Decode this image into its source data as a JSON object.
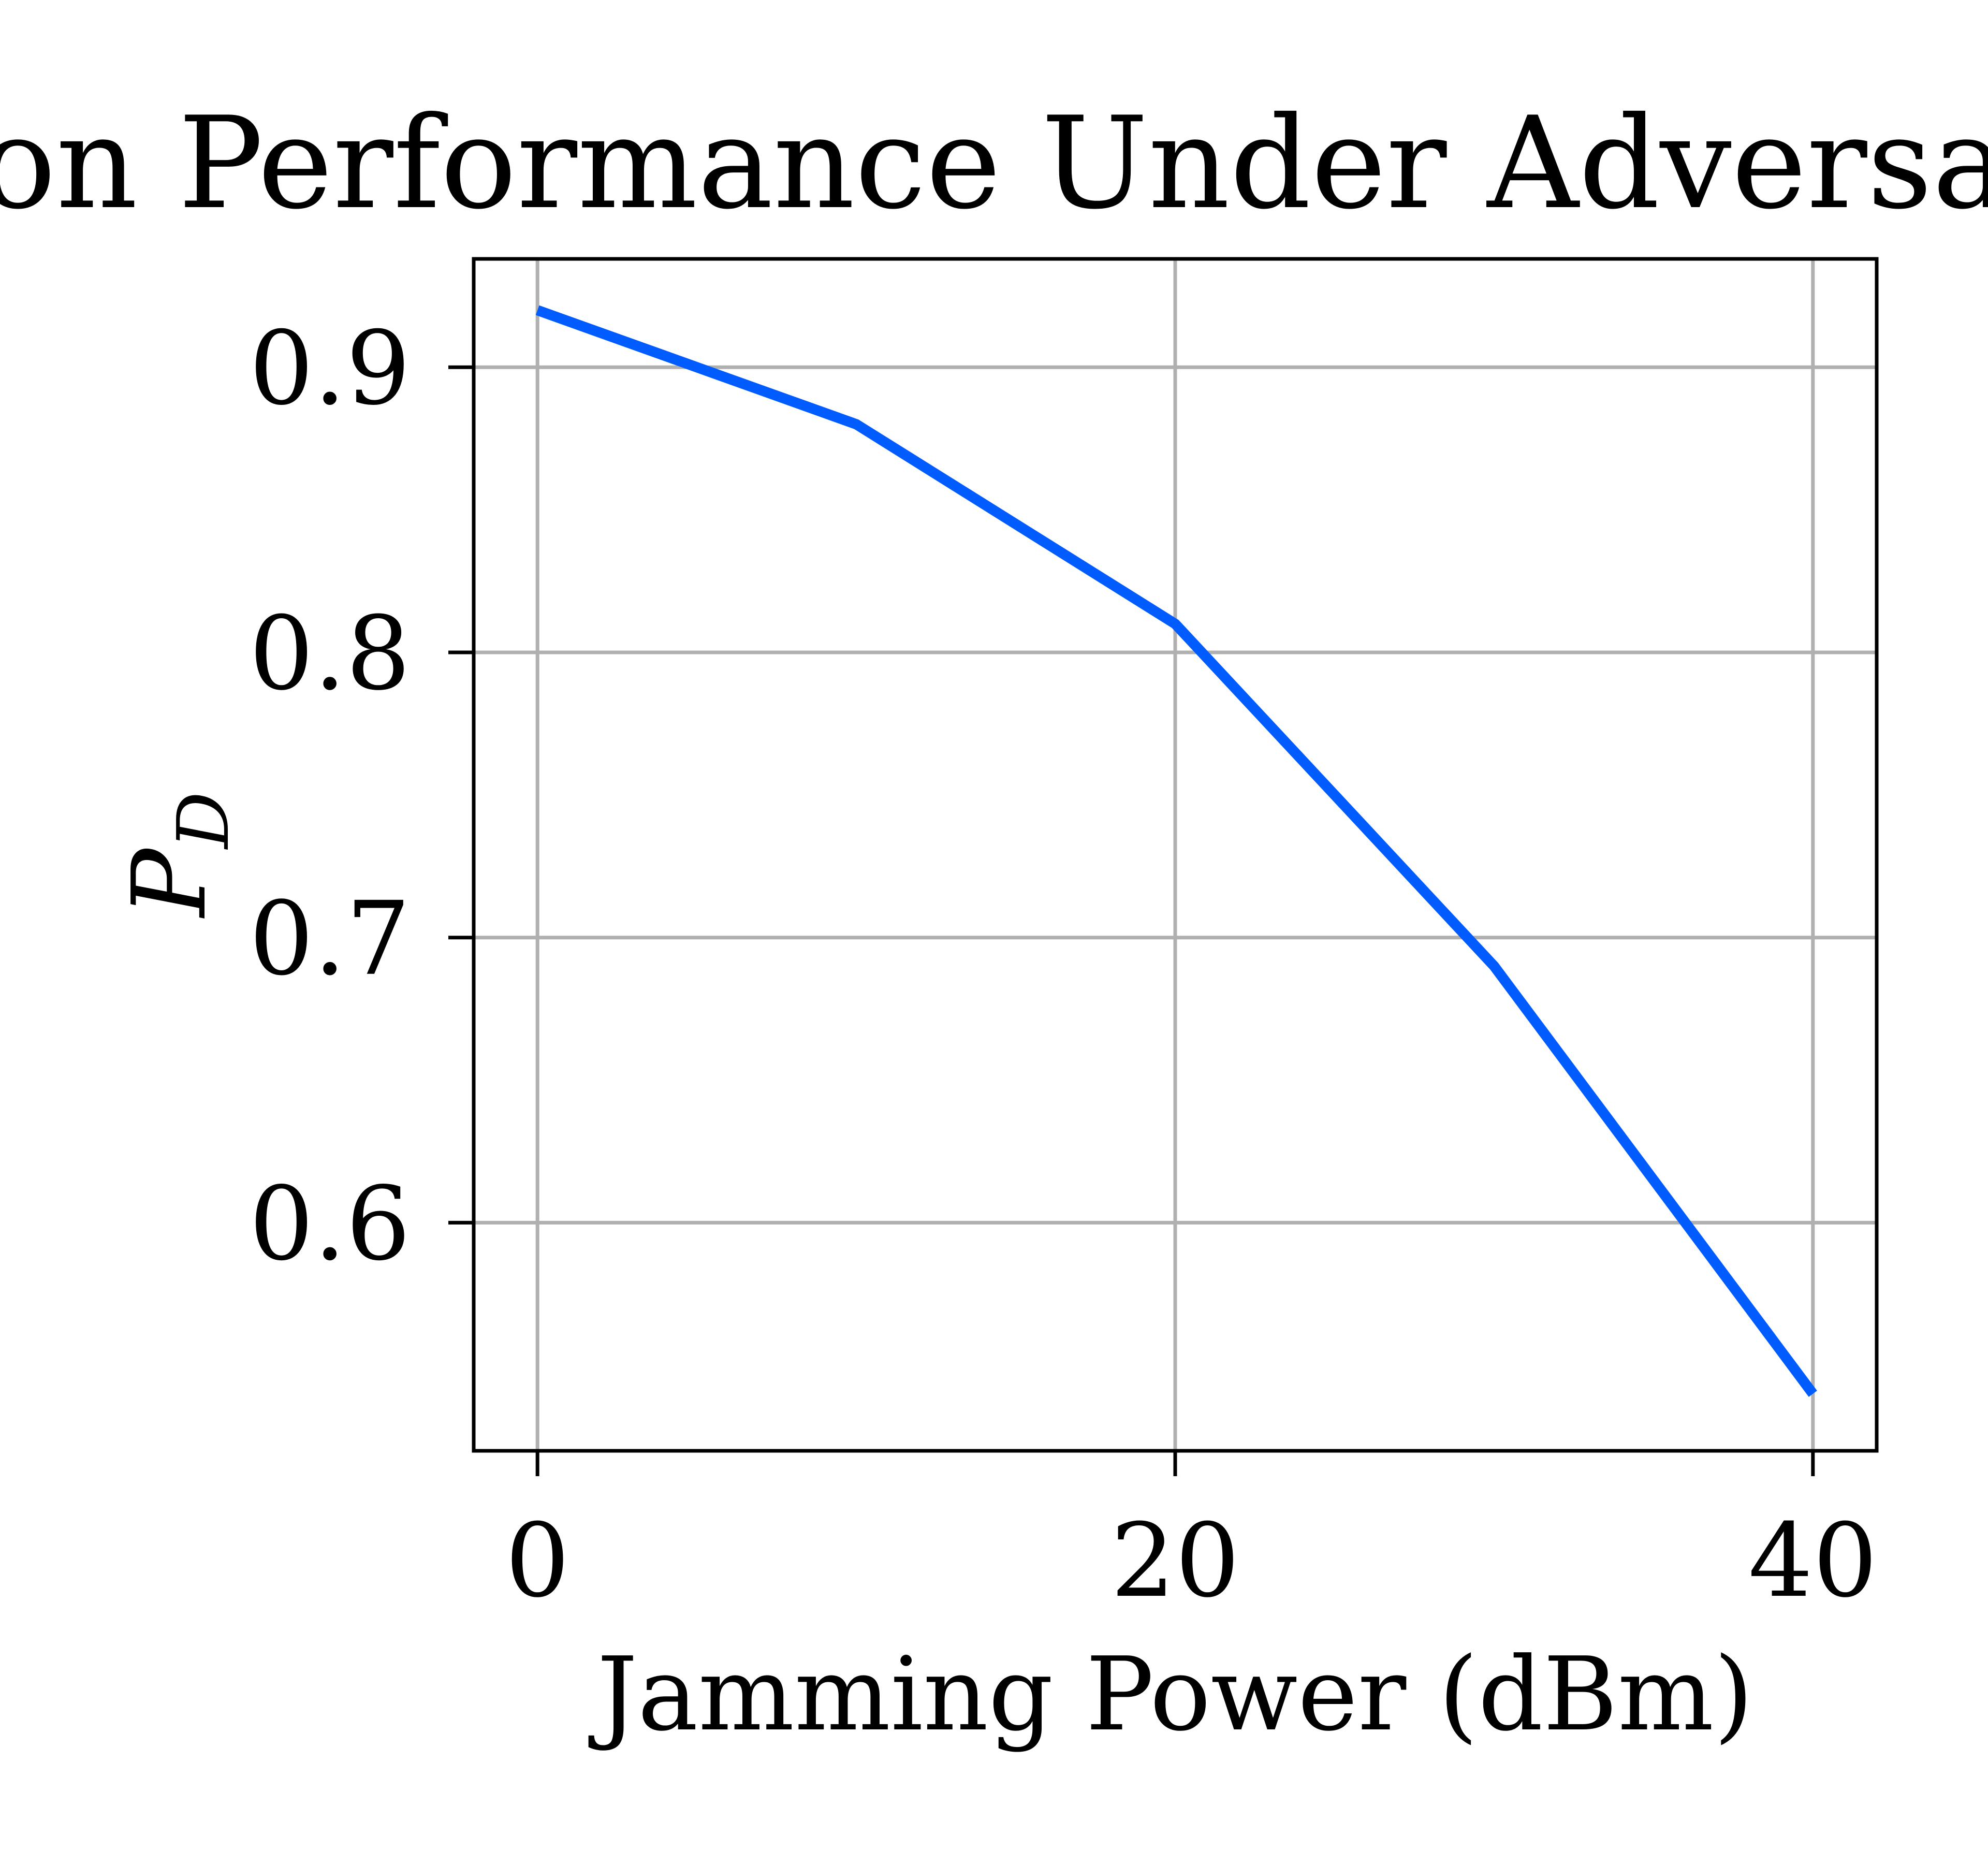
{
  "chart_data": {
    "type": "line",
    "title": "Detection Performance Under Adversarial Jamming",
    "xlabel": "Jamming Power (dBm)",
    "ylabel": {
      "main": "P",
      "subscript": "D"
    },
    "xlim": [
      -2,
      42
    ],
    "ylim": [
      0.52,
      0.938
    ],
    "xticks": [
      0,
      20,
      40
    ],
    "xtick_labels": [
      "0",
      "20",
      "40"
    ],
    "yticks": [
      0.6,
      0.7,
      0.8,
      0.9
    ],
    "ytick_labels": [
      "0.6",
      "0.7",
      "0.8",
      "0.9"
    ],
    "grid": true,
    "legend": "none",
    "colors": {
      "line": "#005cff",
      "grid": "#b0b0b0",
      "axes": "#000000",
      "background": "#ffffff"
    },
    "series": [
      {
        "x": [
          0,
          10,
          20,
          30,
          40
        ],
        "y": [
          0.92,
          0.88,
          0.81,
          0.69,
          0.54
        ]
      }
    ]
  }
}
